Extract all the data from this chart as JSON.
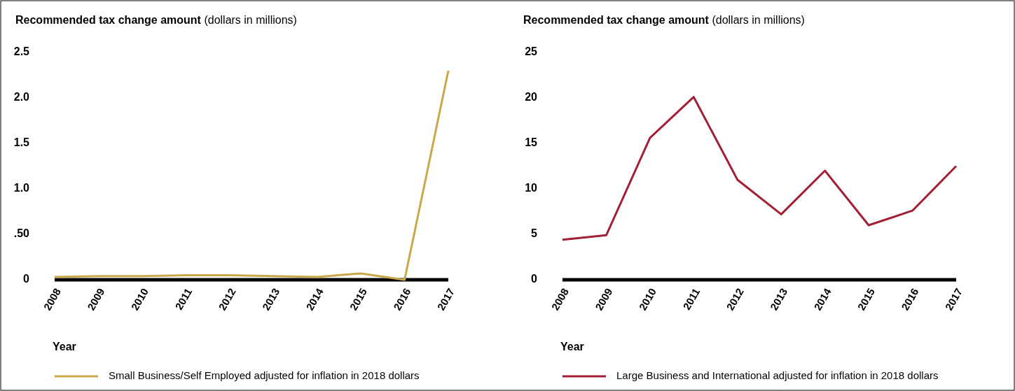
{
  "chart_data": [
    {
      "type": "line",
      "title": "Recommended tax change amount",
      "subtitle": "(dollars in millions)",
      "xlabel": "Year",
      "categories": [
        "2008",
        "2009",
        "2010",
        "2011",
        "2012",
        "2013",
        "2014",
        "2015",
        "2016",
        "2017"
      ],
      "series": [
        {
          "name": "Small Business/Self Employed adjusted for inflation in 2018 dollars",
          "color": "#c9a74a",
          "values": [
            0.03,
            0.04,
            0.04,
            0.05,
            0.05,
            0.04,
            0.03,
            0.07,
            0,
            2.3
          ]
        }
      ],
      "ylim": [
        0,
        2.5
      ],
      "yticks": [
        0,
        {
          "value": 0.5,
          "label": ".50"
        },
        {
          "value": 1,
          "label": "1.0"
        },
        1.5,
        {
          "value": 2,
          "label": "2.0"
        },
        2.5
      ],
      "grid": false,
      "legend": "bottom",
      "marker": "none",
      "line_style": "solid"
    },
    {
      "type": "line",
      "title": "Recommended tax change amount",
      "subtitle": "(dollars in millions)",
      "xlabel": "Year",
      "categories": [
        "2008",
        "2009",
        "2010",
        "2011",
        "2012",
        "2013",
        "2014",
        "2015",
        "2016",
        "2017"
      ],
      "series": [
        {
          "name": "Large Business and International adjusted for inflation in 2018 dollars",
          "color": "#a31f34",
          "values": [
            4.4,
            4.9,
            15.6,
            20.1,
            11.0,
            7.2,
            12.0,
            6.0,
            7.6,
            12.5
          ]
        }
      ],
      "ylim": [
        0,
        25
      ],
      "yticks": [
        0,
        5,
        10,
        15,
        20,
        25
      ],
      "grid": false,
      "legend": "bottom",
      "marker": "none",
      "line_style": "solid"
    }
  ]
}
